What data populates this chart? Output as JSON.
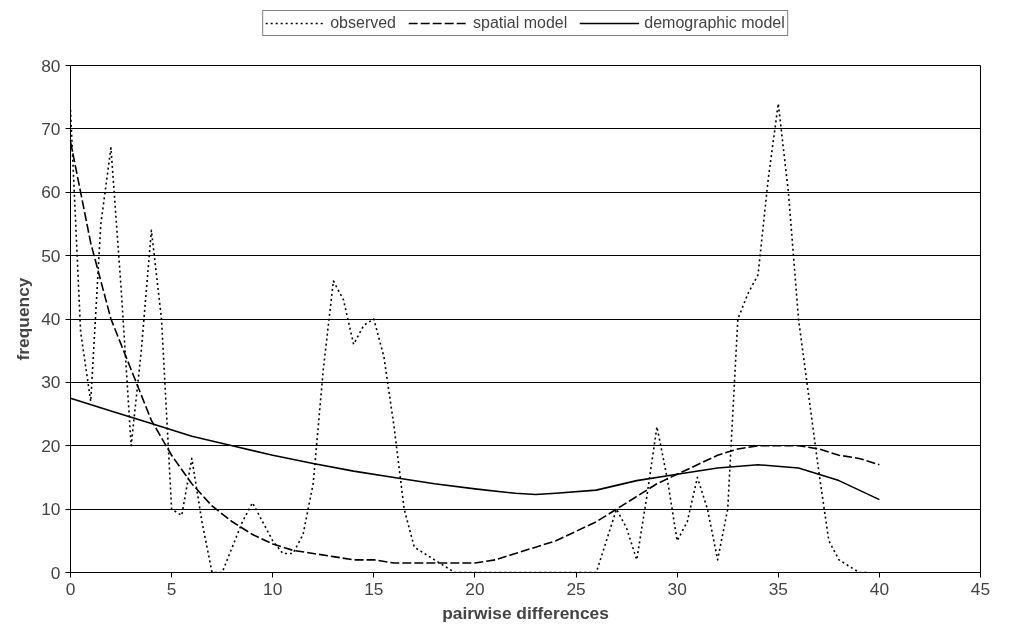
{
  "chart_data": {
    "type": "line",
    "xlabel": "pairwise differences",
    "ylabel": "frequency",
    "xlim": [
      0,
      45
    ],
    "ylim": [
      0,
      80
    ],
    "xticks": [
      0,
      5,
      10,
      15,
      20,
      25,
      30,
      35,
      40,
      45
    ],
    "yticks": [
      0,
      10,
      20,
      30,
      40,
      50,
      60,
      70,
      80
    ],
    "grid": "y",
    "legend": "top",
    "marker": "none",
    "series": [
      {
        "name": "observed",
        "color": "#000000",
        "line_style": "dotted",
        "x": [
          0,
          0.5,
          1,
          1.5,
          2,
          2.5,
          3,
          3.5,
          4,
          4.5,
          5,
          5.5,
          6,
          6.5,
          7,
          7.5,
          8,
          8.5,
          9,
          9.5,
          10,
          10.5,
          11,
          11.5,
          12,
          12.5,
          13,
          13.5,
          14,
          14.5,
          15,
          15.5,
          16,
          16.5,
          17,
          17.5,
          18,
          18.5,
          19,
          20,
          21,
          22,
          23,
          24,
          25,
          26,
          26.5,
          27,
          27.5,
          28,
          28.5,
          29,
          29.5,
          30,
          30.5,
          31,
          31.5,
          32,
          32.5,
          33,
          33.5,
          34,
          34.5,
          35,
          35.5,
          36,
          36.5,
          37,
          37.5,
          38,
          38.5,
          39,
          39.5
        ],
        "values": [
          73,
          38,
          27,
          55,
          67,
          45,
          20,
          35,
          54,
          40,
          10,
          9,
          18,
          8,
          0,
          0,
          4,
          8,
          11,
          8,
          5,
          3,
          3,
          6,
          14,
          32,
          46,
          43,
          36,
          39,
          40,
          34,
          23,
          10,
          4,
          3,
          2,
          1,
          0,
          0,
          0,
          0,
          0,
          0,
          0,
          0,
          5,
          10,
          7,
          2,
          12,
          23,
          15,
          5,
          8,
          15,
          10,
          2,
          10,
          40,
          44,
          47,
          62,
          74,
          60,
          40,
          28,
          16,
          5,
          2,
          1,
          0,
          0
        ]
      },
      {
        "name": "spatial model",
        "color": "#000000",
        "line_style": "dashed",
        "x": [
          0,
          1,
          2,
          3,
          4,
          5,
          6,
          7,
          8,
          9,
          10,
          11,
          12,
          13,
          14,
          15,
          16,
          17,
          18,
          19,
          20,
          21,
          22,
          23,
          24,
          25,
          26,
          27,
          28,
          29,
          30,
          31,
          32,
          33,
          34,
          35,
          36,
          37,
          38,
          39,
          40
        ],
        "values": [
          68,
          52,
          40,
          32,
          24,
          18.5,
          14,
          10.5,
          8,
          6,
          4.5,
          3.5,
          3,
          2.5,
          2,
          2,
          1.5,
          1.5,
          1.5,
          1.5,
          1.5,
          2,
          3,
          4,
          5,
          6.5,
          8,
          10,
          12,
          14,
          15.5,
          17,
          18.5,
          19.5,
          20,
          20,
          20,
          19.5,
          18.5,
          18,
          17
        ]
      },
      {
        "name": "demographic model",
        "color": "#000000",
        "line_style": "solid",
        "x": [
          0,
          2,
          4,
          6,
          8,
          10,
          12,
          14,
          16,
          18,
          20,
          22,
          23,
          24,
          26,
          28,
          30,
          32,
          34,
          36,
          38,
          40
        ],
        "values": [
          27.5,
          25.5,
          23.5,
          21.5,
          20,
          18.5,
          17.2,
          16,
          15,
          14,
          13.2,
          12.5,
          12.3,
          12.5,
          13,
          14.5,
          15.5,
          16.5,
          17,
          16.5,
          14.5,
          11.5
        ]
      }
    ]
  }
}
